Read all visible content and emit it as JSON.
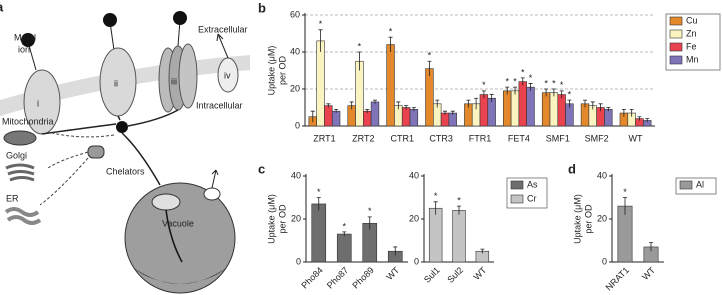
{
  "diagram": {
    "panel": "a",
    "metal_ion": [
      "Metal",
      "ion"
    ],
    "transporters": [
      "i",
      "ii",
      "iii",
      "iv"
    ],
    "extracellular": "Extracellular",
    "intracellular": "Intracellular",
    "mitochondria": "Mitochondria",
    "golgi": "Golgi",
    "er": "ER",
    "chelators": "Chelators",
    "vacuole": "Vacuole"
  },
  "chart_data": [
    {
      "type": "bar",
      "panel": "b",
      "y_label": [
        "Uptake (μM)",
        "per OD"
      ],
      "categories": [
        "ZRT1",
        "ZRT2",
        "CTR1",
        "CTR3",
        "FTR1",
        "FET4",
        "SMF1",
        "SMF2",
        "WT"
      ],
      "series": [
        {
          "name": "Cu",
          "color": "#e3882b",
          "values": [
            5,
            11,
            44,
            31,
            12,
            19,
            18,
            12,
            7
          ],
          "errors": [
            3,
            2,
            4,
            4,
            2,
            2,
            2,
            2,
            2
          ],
          "stars": [
            null,
            null,
            "*",
            "*",
            null,
            "*",
            "*",
            null,
            null
          ]
        },
        {
          "name": "Zn",
          "color": "#fbf4c0",
          "values": [
            46,
            35,
            11,
            12,
            12,
            19,
            18,
            11,
            7
          ],
          "errors": [
            6,
            5,
            2,
            2,
            3,
            2,
            2,
            2,
            2
          ],
          "stars": [
            "*",
            "*",
            null,
            null,
            null,
            "*",
            "*",
            null,
            null
          ]
        },
        {
          "name": "Fe",
          "color": "#e8434f",
          "values": [
            11,
            8,
            10,
            7,
            17,
            24,
            17,
            10,
            4
          ],
          "errors": [
            1,
            1,
            1,
            1,
            2,
            2,
            2,
            2,
            1
          ],
          "stars": [
            null,
            null,
            null,
            null,
            "*",
            "*",
            "*",
            null,
            null
          ]
        },
        {
          "name": "Mn",
          "color": "#7f74b8",
          "values": [
            8,
            13,
            9,
            7,
            15,
            21,
            12,
            9,
            3
          ],
          "errors": [
            1,
            1,
            1,
            1,
            2,
            2,
            2,
            1,
            1
          ],
          "stars": [
            null,
            null,
            null,
            null,
            null,
            "*",
            "*",
            null,
            null
          ]
        }
      ],
      "ylim": [
        0,
        60
      ],
      "yticks": [
        0,
        20,
        40,
        60
      ],
      "grid": "dashed",
      "legend": "top-right"
    },
    {
      "type": "bar",
      "panel": "c",
      "y_label": [
        "Uptake (μM)",
        "per OD"
      ],
      "categories": [
        "Pho84",
        "Pho87",
        "Pho89",
        "WT"
      ],
      "series": [
        {
          "name": "As",
          "color": "#6e6e6e",
          "values": [
            27,
            13,
            18,
            5
          ],
          "errors": [
            3,
            1,
            3,
            2
          ],
          "stars": [
            "*",
            "*",
            "*",
            null
          ]
        }
      ],
      "ylim": [
        0,
        40
      ],
      "yticks": [
        0,
        20,
        40
      ],
      "legend": "right"
    },
    {
      "type": "bar",
      "categories": [
        "Sul1",
        "Sul2",
        "WT"
      ],
      "series": [
        {
          "name": "Cr",
          "color": "#c4c4c4",
          "values": [
            25,
            24,
            5
          ],
          "errors": [
            3,
            2,
            1
          ],
          "stars": [
            "*",
            "*",
            null
          ]
        }
      ],
      "ylim": [
        0,
        40
      ],
      "yticks": [
        0,
        20,
        40
      ],
      "legend": "right"
    },
    {
      "type": "bar",
      "panel": "d",
      "y_label": [
        "Uptake (μM)",
        "per OD"
      ],
      "categories": [
        "NRAT1",
        "WT"
      ],
      "series": [
        {
          "name": "Al",
          "color": "#9a9a9a",
          "values": [
            26,
            7
          ],
          "errors": [
            4,
            2
          ],
          "stars": [
            "*",
            null
          ]
        }
      ],
      "ylim": [
        0,
        40
      ],
      "yticks": [
        0,
        20,
        40
      ],
      "legend": "right"
    }
  ]
}
